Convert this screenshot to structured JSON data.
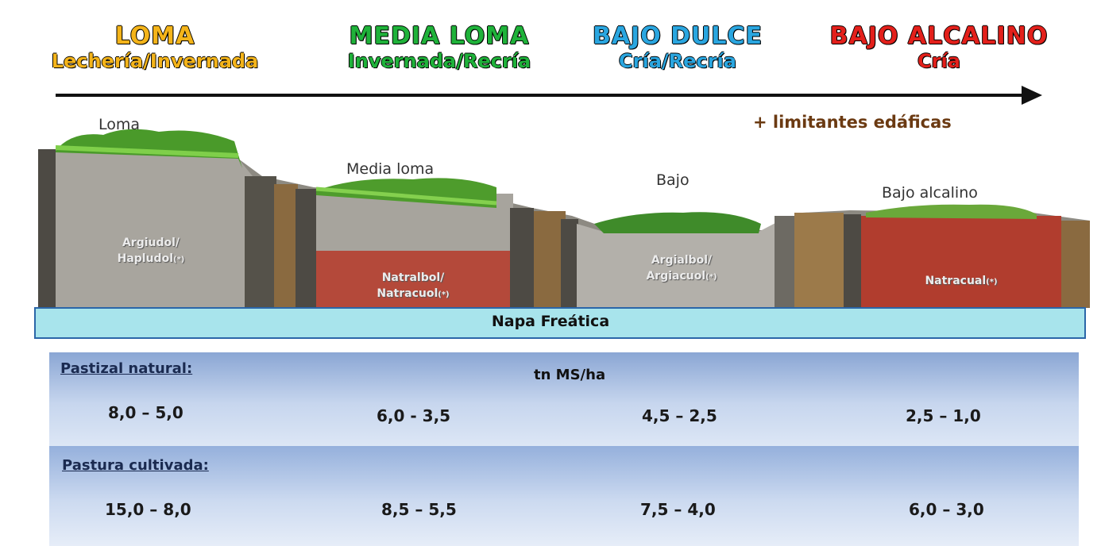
{
  "headers": [
    {
      "title": "LOMA",
      "subtitle": "Lechería/Invernada",
      "color": "#f4b41a"
    },
    {
      "title": "MEDIA LOMA",
      "subtitle": "Invernada/Recría",
      "color": "#1fb23a"
    },
    {
      "title": "BAJO DULCE",
      "subtitle": "Cría/Recría",
      "color": "#2aa6e0"
    },
    {
      "title": "BAJO ALCALINO",
      "subtitle": "Cría",
      "color": "#e3201b"
    }
  ],
  "arrow_note": "+ limitantes edáficas",
  "landscape": {
    "labels": [
      "Loma",
      "Media loma",
      "Bajo",
      "Bajo alcalino"
    ],
    "soils": [
      {
        "line1": "Argiudol/",
        "line2": "Hapludol",
        "mark": "(*)"
      },
      {
        "line1": "Natralbol/",
        "line2": "Natracuol",
        "mark": "(*)"
      },
      {
        "line1": "Argialbol/",
        "line2": "Argiacuol",
        "mark": "(*)"
      },
      {
        "line1": "Natracual",
        "line2": "",
        "mark": "(*)"
      }
    ],
    "water_table": "Napa Freática"
  },
  "table": {
    "unit": "tn MS/ha",
    "rows": [
      {
        "label": "Pastizal natural:",
        "values": [
          "8,0 – 5,0",
          "6,0 - 3,5",
          "4,5 – 2,5",
          "2,5 – 1,0"
        ]
      },
      {
        "label": "Pastura cultivada:",
        "values": [
          "15,0 – 8,0",
          "8,5 – 5,5",
          "7,5 – 4,0",
          "6,0 – 3,0"
        ]
      }
    ]
  }
}
